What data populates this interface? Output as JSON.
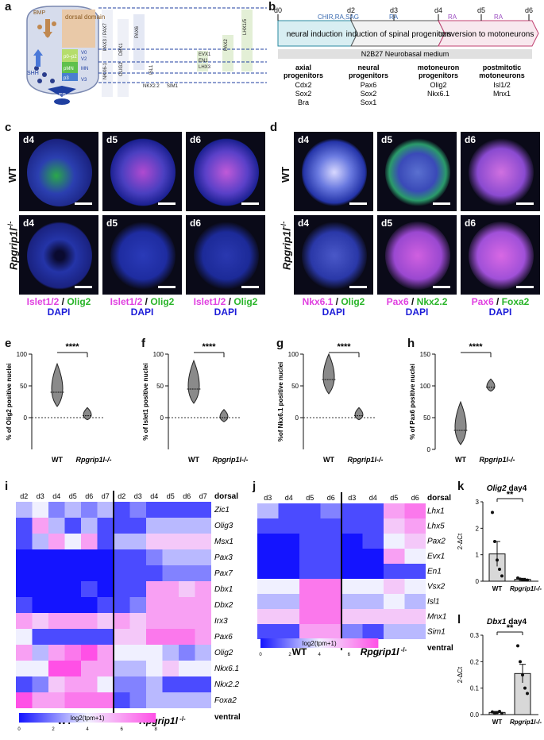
{
  "panel_labels": {
    "a": "a",
    "b": "b",
    "c": "c",
    "d": "d",
    "e": "e",
    "f": "f",
    "g": "g",
    "h": "h",
    "i": "i",
    "j": "j",
    "k": "k",
    "l": "l"
  },
  "panel_a": {
    "dorsal_domain": "dorsal domain",
    "bmp": "BMP",
    "shh": "SHH",
    "fp": "FP",
    "p0p2": "p0–p2",
    "pmn": "pMN",
    "v0": "V0",
    "v2": "V2",
    "mn": "MN",
    "p3": "p3",
    "v3": "V3",
    "genes": [
      "PAX3 / PAX7",
      "DBX1",
      "PAX6",
      "NKX6-1",
      "OLIG2",
      "NKX2.2",
      "ISL1",
      "SIM1",
      "EVX1",
      "EN1",
      "LHX3",
      "PAX2",
      "LHX1/5"
    ]
  },
  "panel_b": {
    "days": [
      "d0",
      "d2",
      "d3",
      "d4",
      "d5",
      "d6"
    ],
    "stages": [
      "neural induction",
      "induction of spinal progenitors",
      "conversion to motoneurons"
    ],
    "treatments": [
      "CHIR,RA,SAG",
      "RA",
      "RA",
      "RA"
    ],
    "medium": "N2B27 Neurobasal medium",
    "columns": [
      {
        "title": "axial progenitors",
        "markers": [
          "Cdx2",
          "Sox2",
          "Bra"
        ]
      },
      {
        "title": "neural progenitors",
        "markers": [
          "Pax6",
          "Sox2",
          "Sox1"
        ]
      },
      {
        "title": "motoneuron progenitors",
        "markers": [
          "Olig2",
          "Nkx6.1"
        ]
      },
      {
        "title": "postmitotic motoneurons",
        "markers": [
          "Isl1/2",
          "Mnx1"
        ]
      }
    ]
  },
  "panel_c": {
    "row_wt": "WT",
    "row_mut": "Rpgrip1l",
    "days": [
      "d4",
      "d5",
      "d6"
    ],
    "caption": {
      "m": "Islet1/2",
      "g": "Olig2",
      "b": "DAPI"
    }
  },
  "panel_d": {
    "row_wt": "WT",
    "row_mut": "Rpgrip1l",
    "days": [
      "d4",
      "d5",
      "d6"
    ],
    "captions": [
      {
        "m": "Nkx6.1",
        "g": "Olig2",
        "b": "DAPI"
      },
      {
        "m": "Pax6",
        "g": "Nkx2.2",
        "b": "DAPI"
      },
      {
        "m": "Pax6",
        "g": "Foxa2",
        "b": "DAPI"
      }
    ]
  },
  "violin": [
    {
      "ylabel": "% of Olig2 positive nuclei",
      "ylim": [
        -50,
        100
      ],
      "ticks": [
        0,
        50,
        100
      ],
      "sig": "****",
      "groups": [
        "WT",
        "Rpgrip1l-/-"
      ],
      "medians": [
        40,
        3
      ]
    },
    {
      "ylabel": "% of Islet1 positive nuclei",
      "ylim": [
        -50,
        100
      ],
      "ticks": [
        0,
        50,
        100
      ],
      "sig": "****",
      "groups": [
        "WT",
        "Rpgrip1l-/-"
      ],
      "medians": [
        45,
        0
      ]
    },
    {
      "ylabel": "%of Nkx6.1 positive nuclei",
      "ylim": [
        -50,
        100
      ],
      "ticks": [
        0,
        50,
        100
      ],
      "sig": "****",
      "groups": [
        "WT",
        "Rpgrip1l-/-"
      ],
      "medians": [
        60,
        3
      ]
    },
    {
      "ylabel": "% of Pax6 positive nuclei",
      "ylim": [
        0,
        150
      ],
      "ticks": [
        0,
        50,
        100,
        150
      ],
      "sig": "****",
      "groups": [
        "WT",
        "Rpgrip1l-/-"
      ],
      "medians": [
        30,
        98
      ]
    }
  ],
  "heat_i": {
    "days": [
      "d2",
      "d3",
      "d4",
      "d5",
      "d6",
      "d7",
      "d2",
      "d3",
      "d4",
      "d5",
      "d6",
      "d7"
    ],
    "genes": [
      "Zic1",
      "Olig3",
      "Msx1",
      "Pax3",
      "Pax7",
      "Dbx1",
      "Dbx2",
      "Irx3",
      "Pax6",
      "Olig2",
      "Nkx6.1",
      "Nkx2.2",
      "Foxa2"
    ],
    "dorsal": "dorsal",
    "ventral": "ventral",
    "wt": "WT",
    "mut": "Rpgrip1l",
    "legend": "log2(tpm+1)",
    "legend_ticks": [
      "0",
      "2",
      "4",
      "6",
      "8"
    ],
    "values": [
      [
        3,
        4,
        2,
        3,
        2,
        3,
        1,
        2,
        1,
        1,
        1,
        1
      ],
      [
        1,
        6,
        3,
        1,
        3,
        1,
        1,
        1,
        3,
        3,
        3,
        3
      ],
      [
        1,
        3,
        6,
        4,
        6,
        1,
        3,
        3,
        5,
        5,
        5,
        5
      ],
      [
        0,
        0,
        0,
        0,
        0,
        0,
        1,
        1,
        2,
        3,
        3,
        3
      ],
      [
        0,
        0,
        0,
        0,
        0,
        0,
        1,
        1,
        1,
        2,
        2,
        2
      ],
      [
        0,
        0,
        0,
        0,
        1,
        0,
        1,
        1,
        6,
        6,
        5,
        6
      ],
      [
        1,
        0,
        0,
        0,
        0,
        1,
        1,
        2,
        6,
        6,
        6,
        6
      ],
      [
        6,
        5,
        6,
        6,
        6,
        5,
        6,
        5,
        6,
        6,
        6,
        6
      ],
      [
        4,
        1,
        1,
        1,
        1,
        1,
        5,
        5,
        7,
        7,
        7,
        6
      ],
      [
        6,
        3,
        6,
        7,
        8,
        6,
        4,
        4,
        4,
        3,
        2,
        3
      ],
      [
        4,
        4,
        8,
        8,
        6,
        6,
        3,
        3,
        4,
        5,
        4,
        4
      ],
      [
        1,
        2,
        5,
        6,
        6,
        4,
        2,
        2,
        3,
        1,
        1,
        1
      ],
      [
        8,
        6,
        6,
        7,
        7,
        7,
        1,
        2,
        3,
        3,
        3,
        3
      ]
    ]
  },
  "heat_j": {
    "days": [
      "d3",
      "d4",
      "d5",
      "d6",
      "d3",
      "d4",
      "d5",
      "d6"
    ],
    "genes": [
      "Lhx1",
      "Lhx5",
      "Pax2",
      "Evx1",
      "En1",
      "Vsx2",
      "Isl1",
      "Mnx1",
      "Sim1"
    ],
    "dorsal": "dorsal",
    "ventral": "ventral",
    "wt": "WT",
    "mut": "Rpgrip1l",
    "legend": "log2(tpm+1)",
    "legend_ticks": [
      "0",
      "2",
      "4",
      "6",
      "8"
    ],
    "values": [
      [
        3,
        1,
        1,
        2,
        1,
        1,
        6,
        7
      ],
      [
        1,
        1,
        1,
        1,
        1,
        1,
        5,
        6
      ],
      [
        0,
        0,
        1,
        1,
        0,
        1,
        4,
        5
      ],
      [
        0,
        0,
        1,
        1,
        0,
        0,
        6,
        4
      ],
      [
        0,
        0,
        1,
        1,
        0,
        0,
        1,
        1
      ],
      [
        4,
        4,
        7,
        7,
        4,
        4,
        5,
        4
      ],
      [
        3,
        3,
        7,
        7,
        3,
        3,
        4,
        3
      ],
      [
        5,
        5,
        7,
        7,
        5,
        5,
        5,
        5
      ],
      [
        1,
        1,
        6,
        6,
        2,
        1,
        3,
        3
      ]
    ]
  },
  "bar_k": {
    "title": "Olig2 day4",
    "ylabel": "2-ΔCt",
    "ylim": [
      0,
      3
    ],
    "ticks": [
      "0",
      "1",
      "2",
      "3"
    ],
    "groups": [
      "WT",
      "Rpgrip1l-/-"
    ],
    "means": [
      1.03,
      0.07
    ],
    "sem": [
      0.47,
      0.04
    ],
    "points": [
      [
        2.6,
        1.5,
        0.8,
        0.45,
        0.2
      ],
      [
        0.12,
        0.08,
        0.05,
        0.05,
        0.04
      ]
    ],
    "sig": "**"
  },
  "bar_l": {
    "title": "Dbx1 day4",
    "ylabel": "2-ΔCt",
    "ylim": [
      0,
      0.3
    ],
    "ticks": [
      "0.0",
      "0.1",
      "0.2",
      "0.3"
    ],
    "groups": [
      "WT",
      "Rpgrip1l-/-"
    ],
    "means": [
      0.008,
      0.155
    ],
    "sem": [
      0.004,
      0.035
    ],
    "points": [
      [
        0.01,
        0.005,
        0.008,
        0.012,
        0.004
      ],
      [
        0.26,
        0.2,
        0.15,
        0.1,
        0.08
      ]
    ],
    "sig": "**"
  }
}
